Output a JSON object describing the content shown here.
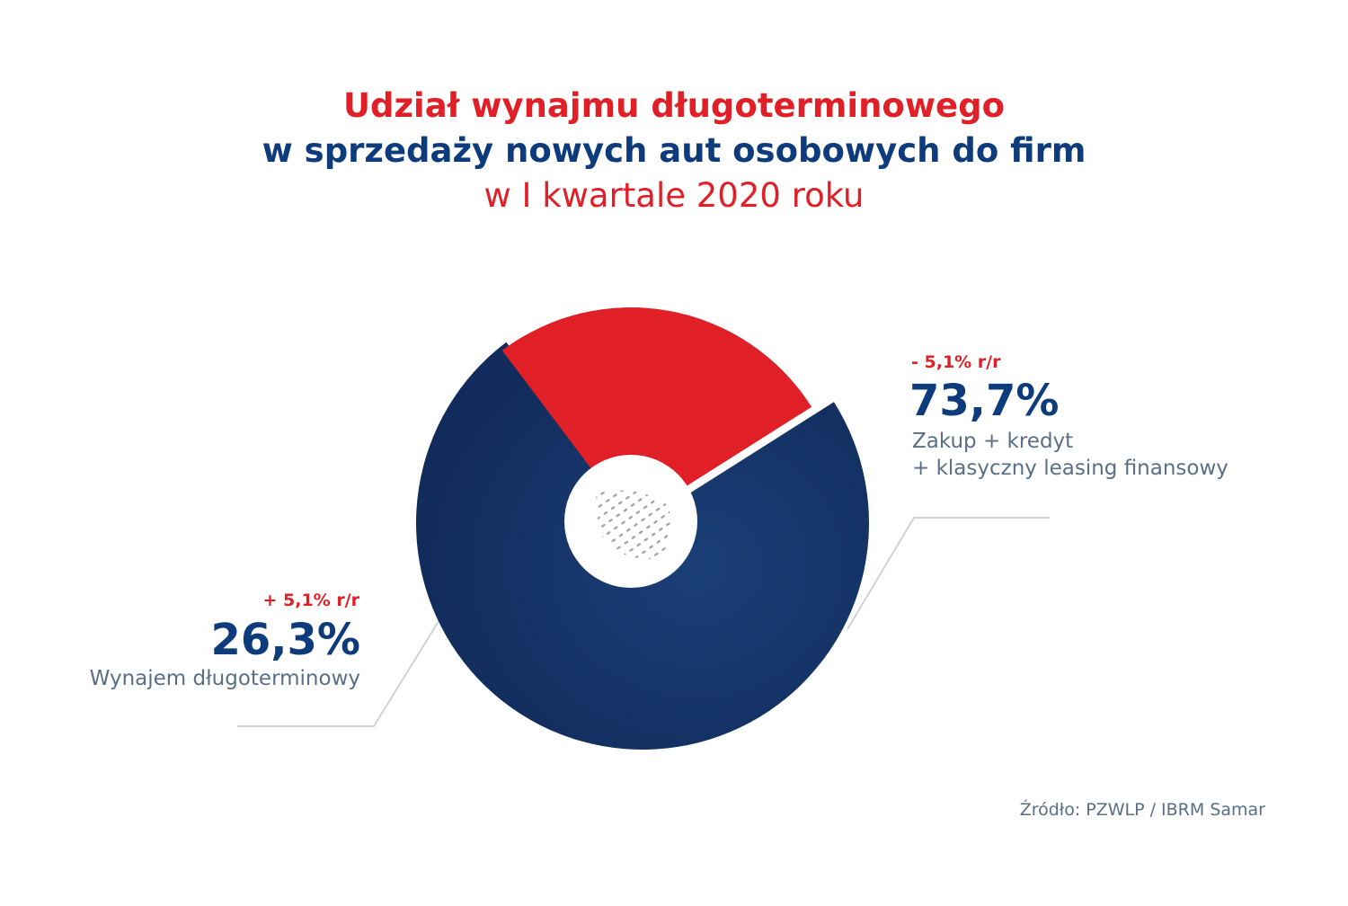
{
  "title": {
    "line1": "Udział wynajmu długoterminowego",
    "line2": "w sprzedaży nowych aut osobowych do firm",
    "line3": "w I kwartale 2020 roku"
  },
  "chart_data": {
    "type": "pie",
    "slices": [
      {
        "value": 73.7,
        "value_label": "73,7%",
        "change": "- 5,1% r/r",
        "description": [
          "Zakup + kredyt",
          "+ klasyczny leasing finansowy"
        ],
        "color": "#13346b"
      },
      {
        "value": 26.3,
        "value_label": "26,3%",
        "change": "+ 5,1% r/r",
        "description": [
          "Wynajem długoterminowy"
        ],
        "color": "#e11f26"
      }
    ]
  },
  "source": "Źródło: PZWLP / IBRM Samar",
  "colors": {
    "accent_red": "#e11f26",
    "brand_blue": "#0d3b7c",
    "text_gray": "#5a6f86",
    "leader_line": "#cfd3d8"
  }
}
